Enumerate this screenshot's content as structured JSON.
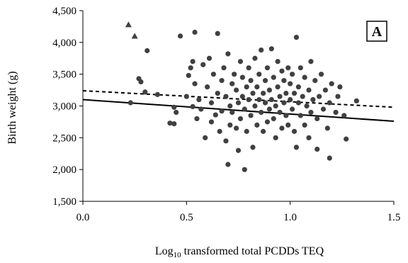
{
  "chart_data": {
    "type": "scatter",
    "panel_label": "A",
    "xlabel_prefix": "Log",
    "xlabel_sub": "10",
    "xlabel_suffix": " transformed total PCDDs TEQ",
    "ylabel": "Birth weight (g)",
    "xlim": [
      0.0,
      1.5
    ],
    "ylim": [
      1500,
      4500
    ],
    "x_ticks": [
      0.0,
      0.5,
      1.0,
      1.5
    ],
    "x_tick_labels": [
      "0.0",
      "0.5",
      "1.0",
      "1.5"
    ],
    "y_ticks": [
      1500,
      2000,
      2500,
      3000,
      3500,
      4000,
      4500
    ],
    "y_tick_labels": [
      "1,500",
      "2,000",
      "2,500",
      "3,000",
      "3,500",
      "4,000",
      "4,500"
    ],
    "grid": false,
    "series": [
      {
        "marker": "triangle",
        "points": [
          [
            0.22,
            4280
          ],
          [
            0.25,
            4100
          ]
        ]
      },
      {
        "marker": "circle",
        "points": [
          [
            0.23,
            3050
          ],
          [
            0.27,
            3430
          ],
          [
            0.28,
            3380
          ],
          [
            0.3,
            3220
          ],
          [
            0.31,
            3870
          ],
          [
            0.36,
            3180
          ],
          [
            0.42,
            2730
          ],
          [
            0.44,
            2720
          ],
          [
            0.44,
            2980
          ],
          [
            0.45,
            2900
          ],
          [
            0.47,
            4100
          ],
          [
            0.5,
            3150
          ],
          [
            0.51,
            3480
          ],
          [
            0.52,
            3600
          ],
          [
            0.53,
            2990
          ],
          [
            0.53,
            3700
          ],
          [
            0.54,
            4160
          ],
          [
            0.54,
            3350
          ],
          [
            0.55,
            2800
          ],
          [
            0.56,
            3100
          ],
          [
            0.57,
            2950
          ],
          [
            0.58,
            3650
          ],
          [
            0.59,
            2500
          ],
          [
            0.6,
            3300
          ],
          [
            0.61,
            3750
          ],
          [
            0.62,
            2750
          ],
          [
            0.62,
            3050
          ],
          [
            0.63,
            3500
          ],
          [
            0.64,
            2860
          ],
          [
            0.65,
            4140
          ],
          [
            0.65,
            3200
          ],
          [
            0.66,
            2600
          ],
          [
            0.67,
            3400
          ],
          [
            0.67,
            2920
          ],
          [
            0.68,
            3600
          ],
          [
            0.69,
            2450
          ],
          [
            0.69,
            3150
          ],
          [
            0.7,
            2080
          ],
          [
            0.7,
            3820
          ],
          [
            0.71,
            2700
          ],
          [
            0.71,
            3000
          ],
          [
            0.72,
            3350
          ],
          [
            0.72,
            2900
          ],
          [
            0.73,
            3500
          ],
          [
            0.74,
            2650
          ],
          [
            0.74,
            3250
          ],
          [
            0.75,
            3050
          ],
          [
            0.75,
            2300
          ],
          [
            0.76,
            3700
          ],
          [
            0.76,
            2800
          ],
          [
            0.77,
            3150
          ],
          [
            0.77,
            3450
          ],
          [
            0.78,
            2000
          ],
          [
            0.78,
            2950
          ],
          [
            0.79,
            3300
          ],
          [
            0.79,
            2600
          ],
          [
            0.8,
            3600
          ],
          [
            0.8,
            3100
          ],
          [
            0.81,
            2850
          ],
          [
            0.81,
            3400
          ],
          [
            0.82,
            2350
          ],
          [
            0.82,
            3200
          ],
          [
            0.83,
            3000
          ],
          [
            0.83,
            3750
          ],
          [
            0.84,
            2700
          ],
          [
            0.84,
            3300
          ],
          [
            0.85,
            3100
          ],
          [
            0.85,
            3500
          ],
          [
            0.86,
            2900
          ],
          [
            0.86,
            3880
          ],
          [
            0.87,
            3200
          ],
          [
            0.87,
            2600
          ],
          [
            0.88,
            3400
          ],
          [
            0.88,
            3050
          ],
          [
            0.89,
            2750
          ],
          [
            0.89,
            3600
          ],
          [
            0.9,
            3250
          ],
          [
            0.9,
            2950
          ],
          [
            0.91,
            3900
          ],
          [
            0.91,
            3100
          ],
          [
            0.92,
            2800
          ],
          [
            0.92,
            3450
          ],
          [
            0.93,
            3000
          ],
          [
            0.93,
            2500
          ],
          [
            0.94,
            3300
          ],
          [
            0.94,
            3700
          ],
          [
            0.95,
            2900
          ],
          [
            0.95,
            3150
          ],
          [
            0.96,
            3550
          ],
          [
            0.96,
            2650
          ],
          [
            0.97,
            3050
          ],
          [
            0.97,
            3400
          ],
          [
            0.98,
            2850
          ],
          [
            0.98,
            3200
          ],
          [
            0.99,
            3600
          ],
          [
            0.99,
            2700
          ],
          [
            1.0,
            3100
          ],
          [
            1.0,
            3350
          ],
          [
            1.01,
            2950
          ],
          [
            1.01,
            3500
          ],
          [
            1.02,
            3200
          ],
          [
            1.02,
            2600
          ],
          [
            1.03,
            4080
          ],
          [
            1.03,
            2350
          ],
          [
            1.04,
            3050
          ],
          [
            1.04,
            3300
          ],
          [
            1.05,
            2850
          ],
          [
            1.05,
            3600
          ],
          [
            1.06,
            3150
          ],
          [
            1.07,
            2700
          ],
          [
            1.07,
            3450
          ],
          [
            1.08,
            3000
          ],
          [
            1.09,
            3250
          ],
          [
            1.09,
            2500
          ],
          [
            1.1,
            3700
          ],
          [
            1.1,
            2900
          ],
          [
            1.11,
            3100
          ],
          [
            1.12,
            3400
          ],
          [
            1.13,
            2800
          ],
          [
            1.13,
            2320
          ],
          [
            1.14,
            3150
          ],
          [
            1.15,
            3500
          ],
          [
            1.16,
            2950
          ],
          [
            1.17,
            3250
          ],
          [
            1.18,
            2650
          ],
          [
            1.19,
            3050
          ],
          [
            1.19,
            2180
          ],
          [
            1.2,
            3350
          ],
          [
            1.22,
            2900
          ],
          [
            1.23,
            3150
          ],
          [
            1.24,
            3300
          ],
          [
            1.26,
            2850
          ],
          [
            1.27,
            2480
          ],
          [
            1.32,
            3080
          ]
        ]
      }
    ],
    "fit_lines": [
      {
        "style": "solid",
        "x": [
          0.0,
          1.5
        ],
        "y": [
          3100,
          2760
        ]
      },
      {
        "style": "dashed",
        "x": [
          0.0,
          1.5
        ],
        "y": [
          3240,
          2980
        ]
      }
    ]
  }
}
